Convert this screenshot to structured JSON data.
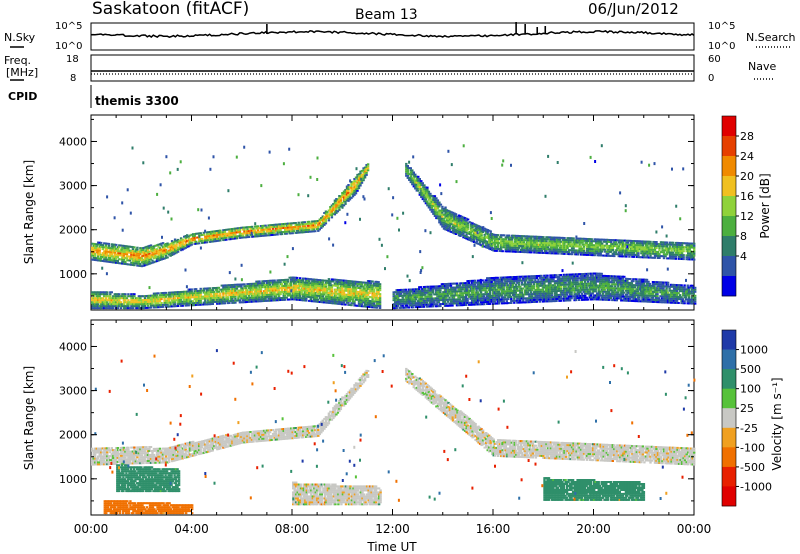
{
  "header": {
    "station": "Saskatoon (fitACF)",
    "beam": "Beam 13",
    "date": "06/Jun/2012"
  },
  "strip": {
    "nsky_label": "N.Sky",
    "nsearch_label": "N.Search",
    "freq_label_1": "Freq.",
    "freq_label_2": "[MHz]",
    "nave_label": "Nave",
    "cpid_label": "CPID",
    "cpid_value": "themis 3300",
    "noise_ticks": [
      "10^5",
      "10^0"
    ],
    "freq_ticks": [
      "18",
      "8"
    ],
    "nave_ticks": [
      "60",
      "0"
    ]
  },
  "chart_data": [
    {
      "type": "heatmap",
      "panel": "power",
      "ylabel": "Slant Range [km]",
      "ylim": [
        180,
        4600
      ],
      "yticks": [
        1000,
        2000,
        3000,
        4000
      ],
      "xlim": [
        0,
        24
      ],
      "colorbar": {
        "label": "Power [dB]",
        "ticks": [
          "28",
          "24",
          "20",
          "16",
          "12",
          "8",
          "4"
        ],
        "range": [
          0,
          32
        ]
      },
      "echo_bands": [
        {
          "range_km_by_hour": [
            [
              0.0,
              1300,
              1700
            ],
            [
              2.0,
              1150,
              1600
            ],
            [
              3.0,
              1350,
              1700
            ],
            [
              4.0,
              1650,
              1900
            ],
            [
              6.0,
              1800,
              2050
            ],
            [
              9.0,
              1950,
              2200
            ],
            [
              10.5,
              2800,
              3200
            ],
            [
              11.0,
              3300,
              3500
            ]
          ],
          "peak_db": 24
        },
        {
          "range_km_by_hour": [
            [
              0.0,
              200,
              600
            ],
            [
              2.0,
              200,
              500
            ],
            [
              8.0,
              400,
              900
            ],
            [
              11.5,
              200,
              800
            ]
          ],
          "peak_db": 20
        },
        {
          "range_km_by_hour": [
            [
              12.5,
              3200,
              3500
            ],
            [
              14.0,
              2000,
              2500
            ],
            [
              16.0,
              1500,
              1900
            ],
            [
              20.0,
              1400,
              1800
            ],
            [
              24.0,
              1300,
              1700
            ]
          ],
          "peak_db": 16
        },
        {
          "range_km_by_hour": [
            [
              12.0,
              200,
              600
            ],
            [
              16.0,
              300,
              900
            ],
            [
              20.0,
              400,
              1000
            ],
            [
              24.0,
              300,
              700
            ]
          ],
          "peak_db": 12
        }
      ]
    },
    {
      "type": "heatmap",
      "panel": "velocity",
      "ylabel": "Slant Range [km]",
      "xlabel": "Time UT",
      "ylim": [
        180,
        4600
      ],
      "yticks": [
        1000,
        2000,
        3000,
        4000
      ],
      "xlim": [
        0,
        24
      ],
      "xticks": [
        "00:00",
        "04:00",
        "08:00",
        "12:00",
        "16:00",
        "20:00",
        "00:00"
      ],
      "colorbar": {
        "label": "Velocity [m s⁻¹]",
        "ticks": [
          "1000",
          "500",
          "100",
          "25",
          "-25",
          "-100",
          "-500",
          "-1000"
        ],
        "range": [
          -1200,
          1200
        ]
      },
      "echo_bands": [
        {
          "range_km_by_hour": [
            [
              0.0,
              1300,
              1700
            ],
            [
              3.0,
              1350,
              1700
            ],
            [
              6.0,
              1800,
              2050
            ],
            [
              9.0,
              1950,
              2200
            ],
            [
              11.0,
              3300,
              3500
            ]
          ],
          "velocity": 0
        },
        {
          "range_km_by_hour": [
            [
              1.0,
              700,
              1300
            ],
            [
              3.5,
              700,
              1200
            ]
          ],
          "velocity": 300
        },
        {
          "range_km_by_hour": [
            [
              0.5,
              200,
              500
            ],
            [
              4.0,
              200,
              400
            ]
          ],
          "velocity": -300
        },
        {
          "range_km_by_hour": [
            [
              8.0,
              400,
              900
            ],
            [
              11.5,
              400,
              800
            ]
          ],
          "velocity": 0
        },
        {
          "range_km_by_hour": [
            [
              12.5,
              3200,
              3500
            ],
            [
              16.0,
              1500,
              1900
            ],
            [
              20.0,
              1400,
              1800
            ],
            [
              24.0,
              1300,
              1700
            ]
          ],
          "velocity": 0
        },
        {
          "range_km_by_hour": [
            [
              18.0,
              500,
              1000
            ],
            [
              22.0,
              500,
              900
            ]
          ],
          "velocity": 150
        }
      ]
    }
  ]
}
